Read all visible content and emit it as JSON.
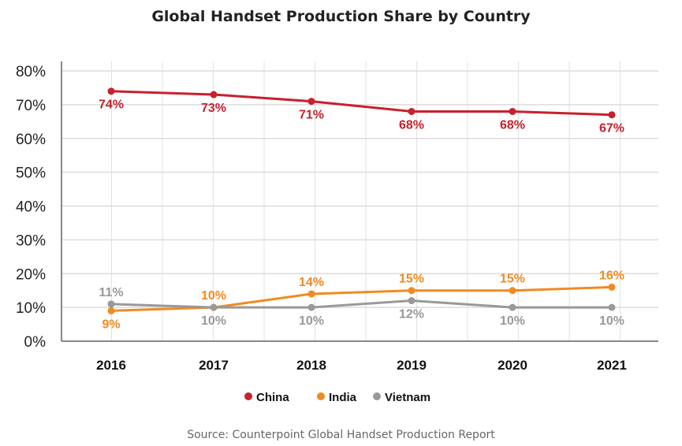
{
  "chart_data": {
    "type": "line",
    "title": "Global Handset Production Share by Country",
    "source": "Source: Counterpoint Global Handset Production Report",
    "categories": [
      "2016",
      "2017",
      "2018",
      "2019",
      "2020",
      "2021"
    ],
    "ylim": [
      0,
      80
    ],
    "yticks": [
      "0%",
      "10%",
      "20%",
      "30%",
      "40%",
      "50%",
      "60%",
      "70%",
      "80%"
    ],
    "grid": true,
    "legend_position": "bottom",
    "series": [
      {
        "name": "China",
        "color": "#c8202c",
        "values": [
          74,
          73,
          71,
          68,
          68,
          67
        ],
        "labels": [
          "74%",
          "73%",
          "71%",
          "68%",
          "68%",
          "67%"
        ],
        "label_pos": "below"
      },
      {
        "name": "India",
        "color": "#f18a21",
        "values": [
          9,
          10,
          14,
          15,
          15,
          16
        ],
        "labels": [
          "9%",
          "10%",
          "14%",
          "15%",
          "15%",
          "16%"
        ],
        "label_pos": [
          "below",
          "above",
          "above",
          "above",
          "above",
          "above"
        ]
      },
      {
        "name": "Vietnam",
        "color": "#999999",
        "values": [
          11,
          10,
          10,
          12,
          10,
          10
        ],
        "labels": [
          "11%",
          "10%",
          "10%",
          "12%",
          "10%",
          "10%"
        ],
        "label_pos": [
          "above",
          "below",
          "below",
          "below",
          "below",
          "below"
        ]
      }
    ]
  }
}
